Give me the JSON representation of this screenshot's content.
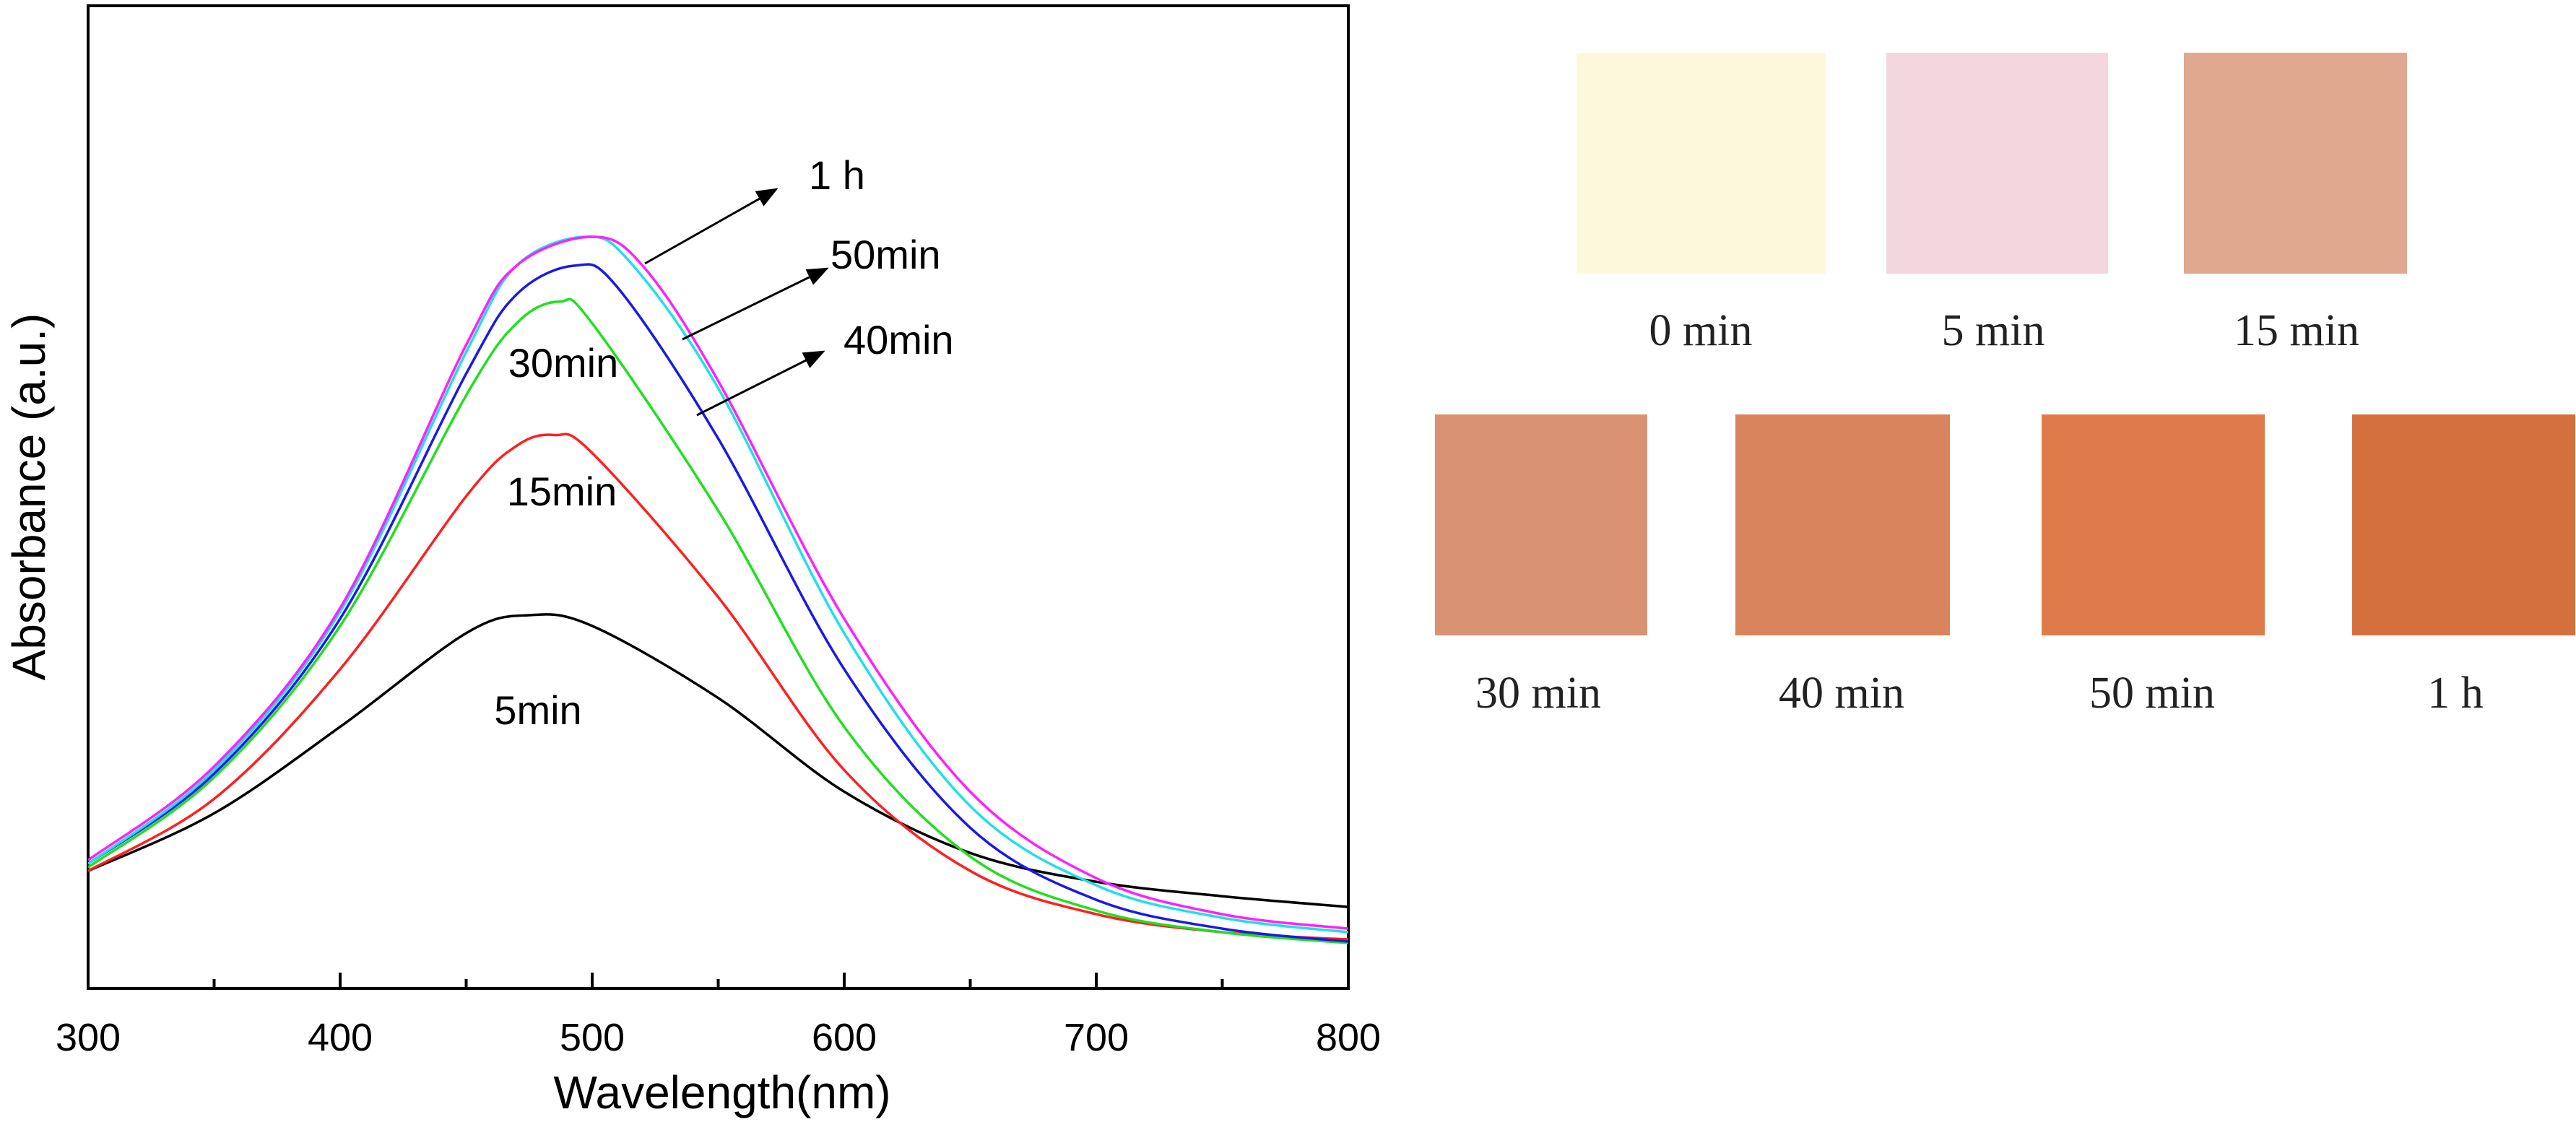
{
  "chart_data": {
    "type": "line",
    "title": "",
    "xlabel": "Wavelength(nm)",
    "ylabel": "Absorbance (a.u.)",
    "xlim": [
      300,
      800
    ],
    "ylim": [
      0,
      1
    ],
    "x_ticks": [
      300,
      400,
      500,
      600,
      700,
      800
    ],
    "y_ticks_shown": false,
    "grid": false,
    "series": [
      {
        "name": "5min",
        "color": "#000000",
        "x": [
          300,
          350,
          400,
          450,
          475,
          500,
          550,
          600,
          650,
          700,
          750,
          800
        ],
        "values": [
          0.12,
          0.2,
          0.32,
          0.45,
          0.475,
          0.46,
          0.36,
          0.23,
          0.145,
          0.105,
          0.085,
          0.07
        ]
      },
      {
        "name": "15min",
        "color": "#ff2020",
        "x": [
          300,
          350,
          400,
          450,
          470,
          485,
          500,
          550,
          600,
          650,
          700,
          750,
          800
        ],
        "values": [
          0.12,
          0.22,
          0.4,
          0.64,
          0.71,
          0.725,
          0.7,
          0.5,
          0.26,
          0.12,
          0.06,
          0.035,
          0.025
        ]
      },
      {
        "name": "30min",
        "color": "#20e020",
        "x": [
          300,
          350,
          400,
          450,
          470,
          487,
          500,
          550,
          600,
          650,
          700,
          750,
          800
        ],
        "values": [
          0.125,
          0.25,
          0.46,
          0.78,
          0.88,
          0.91,
          0.88,
          0.62,
          0.32,
          0.14,
          0.065,
          0.035,
          0.02
        ]
      },
      {
        "name": "40min",
        "color": "#1a1ae6",
        "x": [
          300,
          350,
          400,
          450,
          470,
          493,
          510,
          550,
          600,
          650,
          700,
          750,
          800
        ],
        "values": [
          0.13,
          0.255,
          0.47,
          0.81,
          0.92,
          0.96,
          0.93,
          0.72,
          0.4,
          0.18,
          0.08,
          0.04,
          0.022
        ]
      },
      {
        "name": "50min",
        "color": "#20e0e6",
        "x": [
          300,
          350,
          400,
          450,
          470,
          497,
          515,
          550,
          600,
          650,
          700,
          750,
          800
        ],
        "values": [
          0.13,
          0.26,
          0.48,
          0.84,
          0.96,
          1.0,
          0.965,
          0.79,
          0.45,
          0.21,
          0.1,
          0.055,
          0.035
        ]
      },
      {
        "name": "1 h",
        "color": "#ff20ff",
        "x": [
          300,
          350,
          400,
          450,
          470,
          500,
          520,
          550,
          600,
          650,
          700,
          750,
          800
        ],
        "values": [
          0.135,
          0.265,
          0.485,
          0.85,
          0.96,
          1.0,
          0.96,
          0.8,
          0.47,
          0.23,
          0.11,
          0.06,
          0.04
        ]
      }
    ],
    "curve_labels": [
      "1 h",
      "50min",
      "40min",
      "30min",
      "15min",
      "5min"
    ],
    "annotations": [
      {
        "text": "1 h",
        "arrow": true
      },
      {
        "text": "50min",
        "arrow": true
      },
      {
        "text": "40min",
        "arrow": true
      },
      {
        "text": "30min",
        "arrow": false
      },
      {
        "text": "15min",
        "arrow": false
      },
      {
        "text": "5min",
        "arrow": false
      }
    ]
  },
  "swatches": [
    {
      "label": "0 min",
      "color": "#fdf8dc"
    },
    {
      "label": "5 min",
      "color": "#f2d8de"
    },
    {
      "label": "15 min",
      "color": "#e0a88e"
    },
    {
      "label": "30 min",
      "color": "#d99272"
    },
    {
      "label": "40 min",
      "color": "#d9845c"
    },
    {
      "label": "50 min",
      "color": "#df7b4a"
    },
    {
      "label": "1 h",
      "color": "#d46f3e"
    }
  ]
}
